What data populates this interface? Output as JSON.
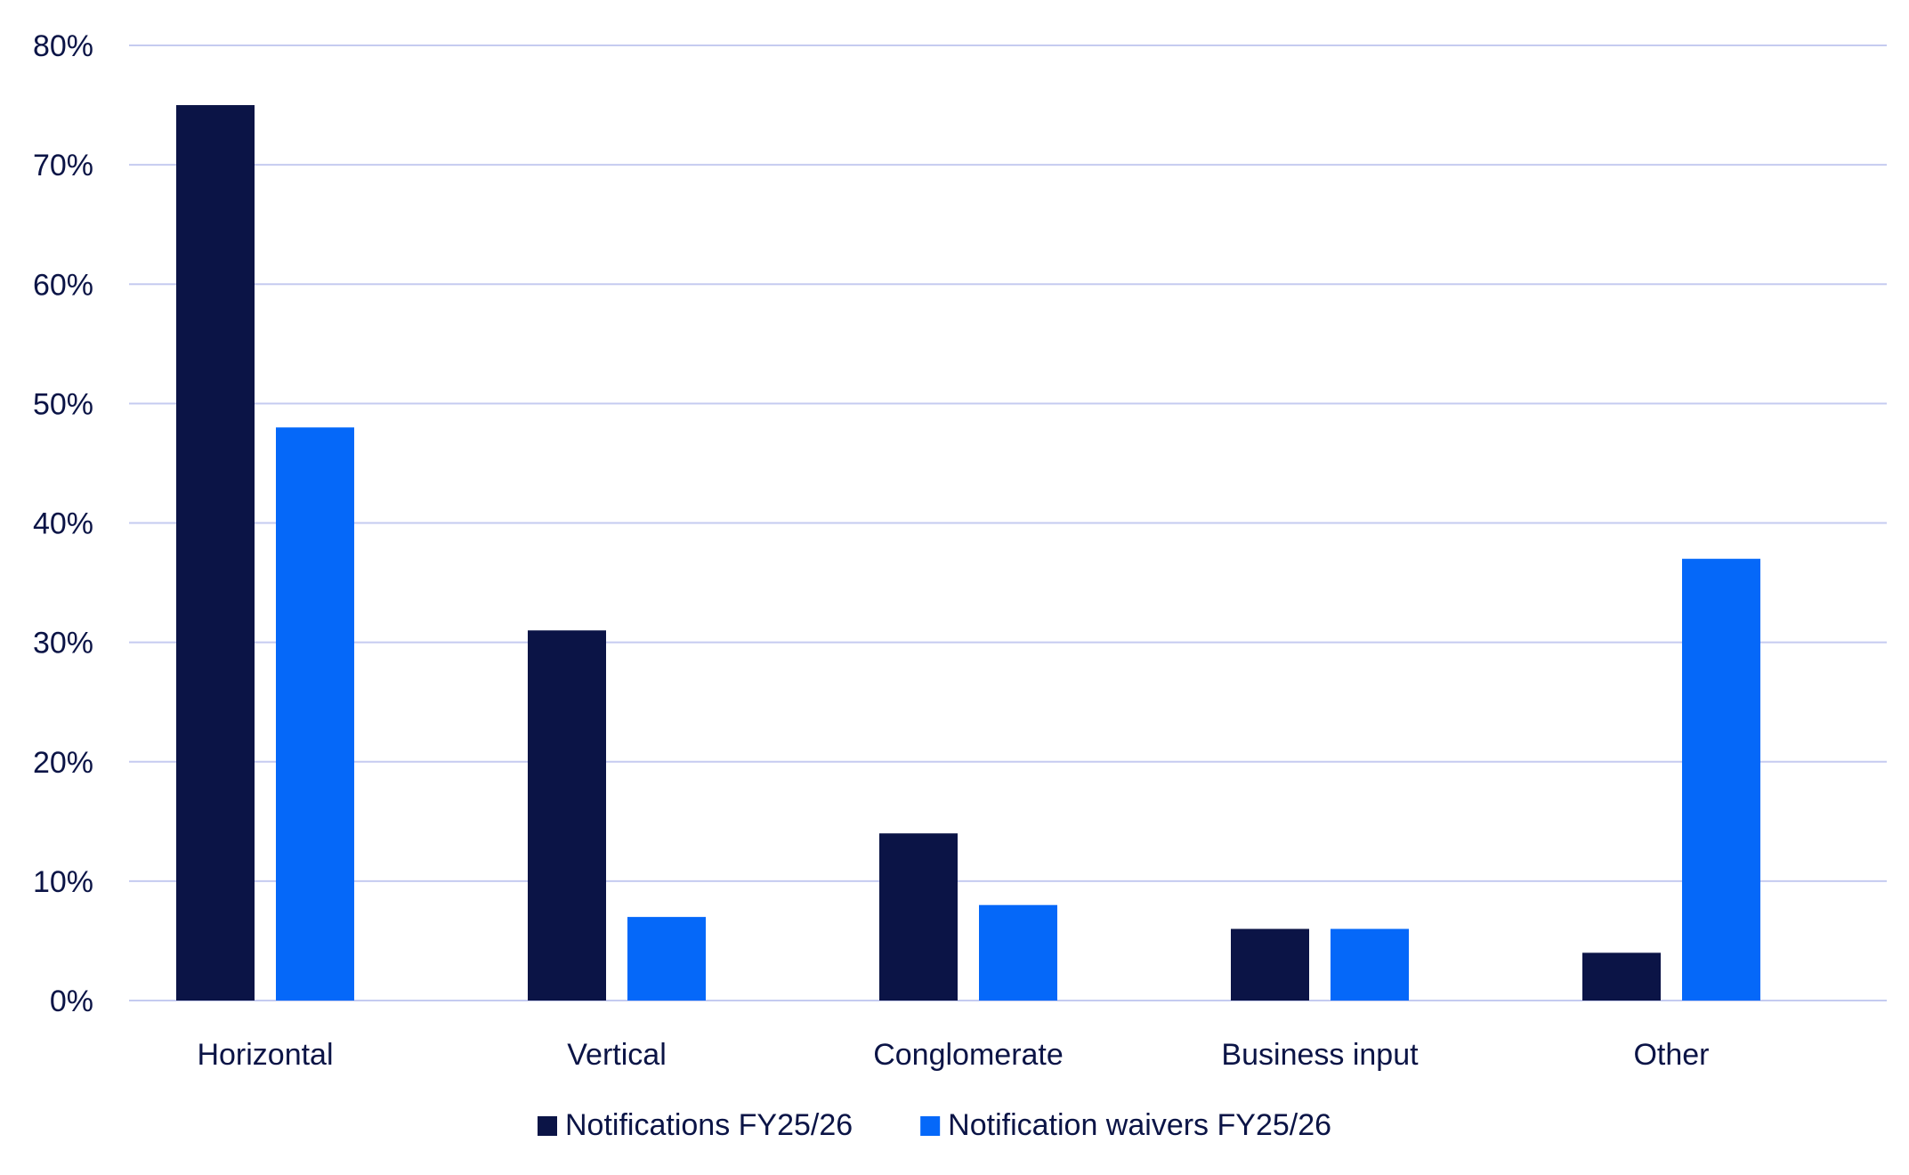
{
  "chart_data": {
    "type": "bar",
    "title": "",
    "xlabel": "",
    "ylabel": "",
    "categories": [
      "Horizontal",
      "Vertical",
      "Conglomerate",
      "Business input",
      "Other"
    ],
    "series": [
      {
        "name": "Notifications FY25/26",
        "color": "#0b1446",
        "values": [
          75,
          31,
          14,
          6,
          4
        ]
      },
      {
        "name": "Notification waivers FY25/26",
        "color": "#0568f9",
        "values": [
          48,
          7,
          8,
          6,
          37
        ]
      }
    ],
    "ylim": [
      0,
      80
    ],
    "yticks": [
      0,
      10,
      20,
      30,
      40,
      50,
      60,
      70,
      80
    ],
    "ytick_labels": [
      "0%",
      "10%",
      "20%",
      "30%",
      "40%",
      "50%",
      "60%",
      "70%",
      "80%"
    ],
    "grid": true,
    "legend_position": "bottom-center",
    "colors": {
      "text": "#0b1446",
      "grid": "#c5cbf0"
    }
  }
}
